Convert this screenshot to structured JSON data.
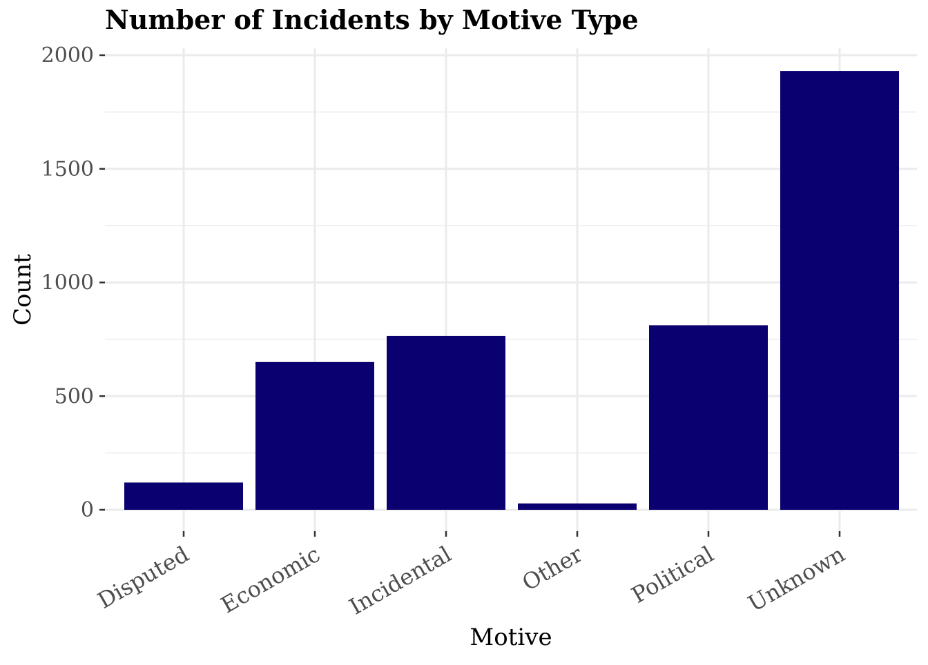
{
  "chart_data": {
    "type": "bar",
    "title": "Number of Incidents by Motive Type",
    "xlabel": "Motive",
    "ylabel": "Count",
    "categories": [
      "Disputed",
      "Economic",
      "Incidental",
      "Other",
      "Political",
      "Unknown"
    ],
    "values": [
      120,
      650,
      765,
      28,
      812,
      1930
    ],
    "ylim": [
      0,
      2000
    ],
    "yticks": [
      0,
      500,
      1000,
      1500,
      2000
    ],
    "ytick_labels": [
      "0",
      "500",
      "1000",
      "1500",
      "2000"
    ],
    "grid": true,
    "bar_color": "#0b0070",
    "grid_color": "#ebebeb",
    "text_color": "#4d4d4d"
  }
}
